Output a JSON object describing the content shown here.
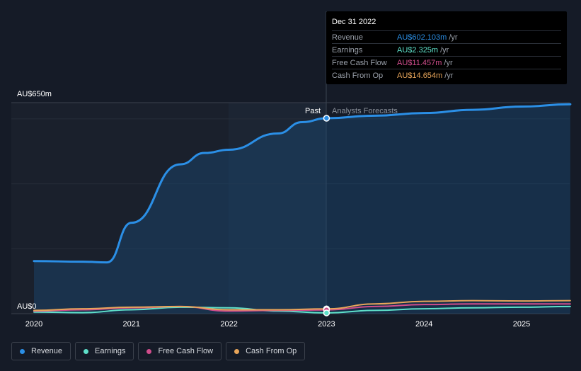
{
  "chart_data": {
    "type": "line",
    "y_label_top": "AU$650m",
    "y_label_bottom": "AU$0",
    "ylim": [
      0,
      650
    ],
    "x_ticks": [
      "2020",
      "2021",
      "2022",
      "2023",
      "2024",
      "2025"
    ],
    "divider_labels": {
      "past": "Past",
      "forecast": "Analysts Forecasts"
    },
    "grid": true,
    "series": [
      {
        "name": "Revenue",
        "color": "#2b8fe6",
        "points": [
          [
            2020.0,
            162
          ],
          [
            2020.5,
            160
          ],
          [
            2020.75,
            158
          ],
          [
            2021.0,
            280
          ],
          [
            2021.5,
            460
          ],
          [
            2021.75,
            495
          ],
          [
            2022.0,
            505
          ],
          [
            2022.5,
            555
          ],
          [
            2022.75,
            590
          ],
          [
            2023.0,
            602
          ],
          [
            2023.5,
            610
          ],
          [
            2024.0,
            618
          ],
          [
            2024.5,
            628
          ],
          [
            2025.0,
            638
          ],
          [
            2025.5,
            645
          ]
        ]
      },
      {
        "name": "Earnings",
        "color": "#5ee0c9",
        "points": [
          [
            2020.0,
            5
          ],
          [
            2020.5,
            3
          ],
          [
            2021.0,
            12
          ],
          [
            2021.5,
            20
          ],
          [
            2022.0,
            18
          ],
          [
            2022.5,
            8
          ],
          [
            2023.0,
            2.3
          ],
          [
            2023.5,
            10
          ],
          [
            2024.0,
            15
          ],
          [
            2024.5,
            18
          ],
          [
            2025.0,
            20
          ],
          [
            2025.5,
            22
          ]
        ]
      },
      {
        "name": "Free Cash Flow",
        "color": "#d04d8c",
        "points": [
          [
            2020.0,
            8
          ],
          [
            2020.5,
            12
          ],
          [
            2021.0,
            18
          ],
          [
            2021.5,
            22
          ],
          [
            2022.0,
            8
          ],
          [
            2022.5,
            10
          ],
          [
            2023.0,
            11.5
          ],
          [
            2023.5,
            22
          ],
          [
            2024.0,
            28
          ],
          [
            2024.5,
            30
          ],
          [
            2025.0,
            30
          ],
          [
            2025.5,
            30
          ]
        ]
      },
      {
        "name": "Cash From Op",
        "color": "#e8a55a",
        "points": [
          [
            2020.0,
            10
          ],
          [
            2020.5,
            15
          ],
          [
            2021.0,
            20
          ],
          [
            2021.5,
            22
          ],
          [
            2022.0,
            12
          ],
          [
            2022.5,
            12
          ],
          [
            2023.0,
            14.7
          ],
          [
            2023.5,
            30
          ],
          [
            2024.0,
            38
          ],
          [
            2024.5,
            40
          ],
          [
            2025.0,
            39
          ],
          [
            2025.5,
            40
          ]
        ]
      }
    ]
  },
  "tooltip": {
    "date": "Dec 31 2022",
    "rows": [
      {
        "label": "Revenue",
        "value": "AU$602.103m",
        "unit": "/yr",
        "color": "#2b8fe6"
      },
      {
        "label": "Earnings",
        "value": "AU$2.325m",
        "unit": "/yr",
        "color": "#5ee0c9"
      },
      {
        "label": "Free Cash Flow",
        "value": "AU$11.457m",
        "unit": "/yr",
        "color": "#d04d8c"
      },
      {
        "label": "Cash From Op",
        "value": "AU$14.654m",
        "unit": "/yr",
        "color": "#e8a55a"
      }
    ]
  },
  "legend": [
    {
      "label": "Revenue",
      "color": "#2b8fe6"
    },
    {
      "label": "Earnings",
      "color": "#5ee0c9"
    },
    {
      "label": "Free Cash Flow",
      "color": "#d04d8c"
    },
    {
      "label": "Cash From Op",
      "color": "#e8a55a"
    }
  ]
}
